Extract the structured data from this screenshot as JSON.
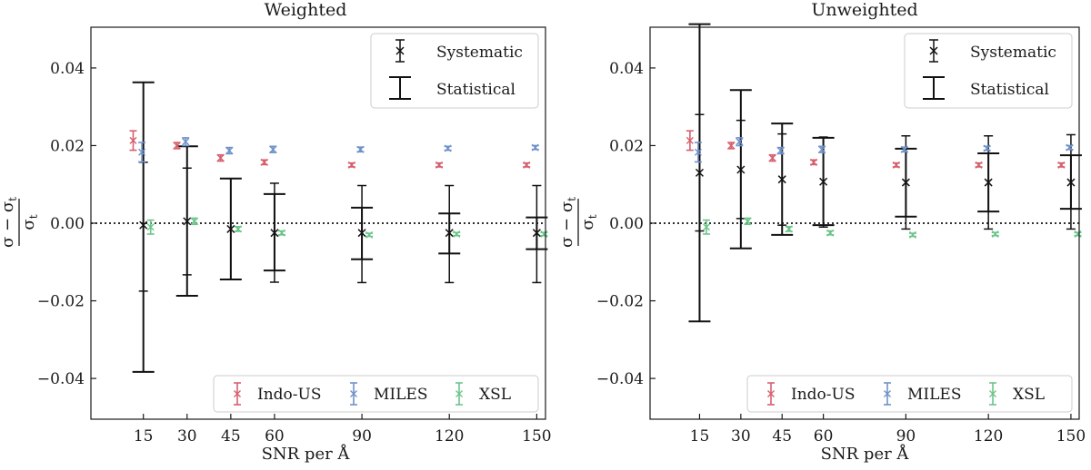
{
  "figure": {
    "xlabel": "SNR per Å",
    "ylabel_top": "σ − σ",
    "ylabel_top_sub": "t",
    "ylabel_bottom": "σ",
    "ylabel_bottom_sub": "t",
    "legend_upper": {
      "systematic": "Systematic",
      "statistical": "Statistical"
    },
    "legend_lower": [
      "Indo-US",
      "MILES",
      "XSL"
    ]
  },
  "colors": {
    "indo_us": "#d6606d",
    "miles": "#6f92c8",
    "xsl": "#6cc58a",
    "black": "#111111"
  },
  "chart_data": [
    {
      "type": "errorbar",
      "title": "Weighted",
      "xlabel": "SNR per Å",
      "ylabel": "(σ − σt) / σt",
      "categories": [
        "15",
        "30",
        "45",
        "60",
        "90",
        "120",
        "150"
      ],
      "x": [
        15,
        30,
        45,
        60,
        90,
        120,
        150
      ],
      "xlim": [
        -3,
        153
      ],
      "ylim": [
        -0.0505,
        0.0505
      ],
      "yticks": [
        -0.04,
        -0.02,
        0.0,
        0.02,
        0.04
      ],
      "ytick_labels": [
        "−0.04",
        "−0.02",
        "0.00",
        "0.02",
        "0.04"
      ],
      "reference_line": 0.0,
      "legend_upper_position": "top-right",
      "legend_lower_position": "bottom-right",
      "series": [
        {
          "name": "Systematic",
          "center": [
            -0.0005,
            0.0005,
            -0.0015,
            -0.0025,
            -0.0025,
            -0.0025,
            -0.0025
          ],
          "low": [
            -0.0175,
            -0.0133,
            -0.0145,
            -0.0152,
            -0.0153,
            -0.0153,
            -0.0153
          ],
          "high": [
            0.0157,
            0.0142,
            0.0115,
            0.0103,
            0.0097,
            0.0097,
            0.0097
          ]
        },
        {
          "name": "Statistical",
          "low": [
            -0.0383,
            -0.0187,
            -0.0145,
            -0.0122,
            -0.0093,
            -0.0078,
            -0.0067
          ],
          "high": [
            0.0363,
            0.0198,
            0.0115,
            0.0075,
            0.004,
            0.0025,
            0.0015
          ]
        },
        {
          "name": "Indo-US",
          "offset": -3.5,
          "center": [
            0.0213,
            0.02,
            0.0168,
            0.0157,
            0.015,
            0.015,
            0.015
          ],
          "err": [
            0.0025,
            0.0008,
            0.0008,
            0.0006,
            0.0005,
            0.0005,
            0.0005
          ]
        },
        {
          "name": "MILES",
          "offset": -0.5,
          "center": [
            0.0183,
            0.021,
            0.0187,
            0.019,
            0.019,
            0.0193,
            0.0195
          ],
          "err": [
            0.0025,
            0.001,
            0.0008,
            0.0008,
            0.0006,
            0.0005,
            0.0005
          ]
        },
        {
          "name": "XSL",
          "offset": 2.5,
          "center": [
            -0.001,
            0.0005,
            -0.0015,
            -0.0025,
            -0.003,
            -0.0028,
            -0.0028
          ],
          "err": [
            0.0018,
            0.0008,
            0.0006,
            0.0005,
            0.0004,
            0.0004,
            0.0004
          ]
        }
      ]
    },
    {
      "type": "errorbar",
      "title": "Unweighted",
      "xlabel": "SNR per Å",
      "ylabel": "(σ − σt) / σt",
      "categories": [
        "15",
        "30",
        "45",
        "60",
        "90",
        "120",
        "150"
      ],
      "x": [
        15,
        30,
        45,
        60,
        90,
        120,
        150
      ],
      "xlim": [
        -3,
        153
      ],
      "ylim": [
        -0.0505,
        0.0505
      ],
      "yticks": [
        -0.04,
        -0.02,
        0.0,
        0.02,
        0.04
      ],
      "ytick_labels": [
        "−0.04",
        "−0.02",
        "0.00",
        "0.02",
        "0.04"
      ],
      "reference_line": 0.0,
      "legend_upper_position": "top-right",
      "legend_lower_position": "bottom-right",
      "series": [
        {
          "name": "Systematic",
          "center": [
            0.013,
            0.0138,
            0.0113,
            0.0107,
            0.0105,
            0.0105,
            0.0105
          ],
          "low": [
            -0.002,
            0.0012,
            -0.0005,
            -0.001,
            -0.0015,
            -0.0015,
            -0.0015
          ],
          "high": [
            0.028,
            0.0265,
            0.023,
            0.0222,
            0.0225,
            0.0225,
            0.0228
          ]
        },
        {
          "name": "Statistical",
          "low": [
            -0.0253,
            -0.0065,
            -0.003,
            -0.0005,
            0.0017,
            0.003,
            0.0037
          ],
          "high": [
            0.0513,
            0.0343,
            0.0257,
            0.022,
            0.0192,
            0.018,
            0.0175
          ]
        },
        {
          "name": "Indo-US",
          "offset": -3.5,
          "center": [
            0.0213,
            0.02,
            0.0168,
            0.0157,
            0.015,
            0.015,
            0.015
          ],
          "err": [
            0.0025,
            0.0008,
            0.0008,
            0.0006,
            0.0005,
            0.0005,
            0.0005
          ]
        },
        {
          "name": "MILES",
          "offset": -0.5,
          "center": [
            0.0183,
            0.021,
            0.0187,
            0.019,
            0.019,
            0.0193,
            0.0195
          ],
          "err": [
            0.0025,
            0.001,
            0.0008,
            0.0008,
            0.0006,
            0.0005,
            0.0005
          ]
        },
        {
          "name": "XSL",
          "offset": 2.5,
          "center": [
            -0.001,
            0.0005,
            -0.0015,
            -0.0025,
            -0.003,
            -0.0028,
            -0.0028
          ],
          "err": [
            0.0018,
            0.0008,
            0.0006,
            0.0005,
            0.0004,
            0.0004,
            0.0004
          ]
        }
      ]
    }
  ]
}
